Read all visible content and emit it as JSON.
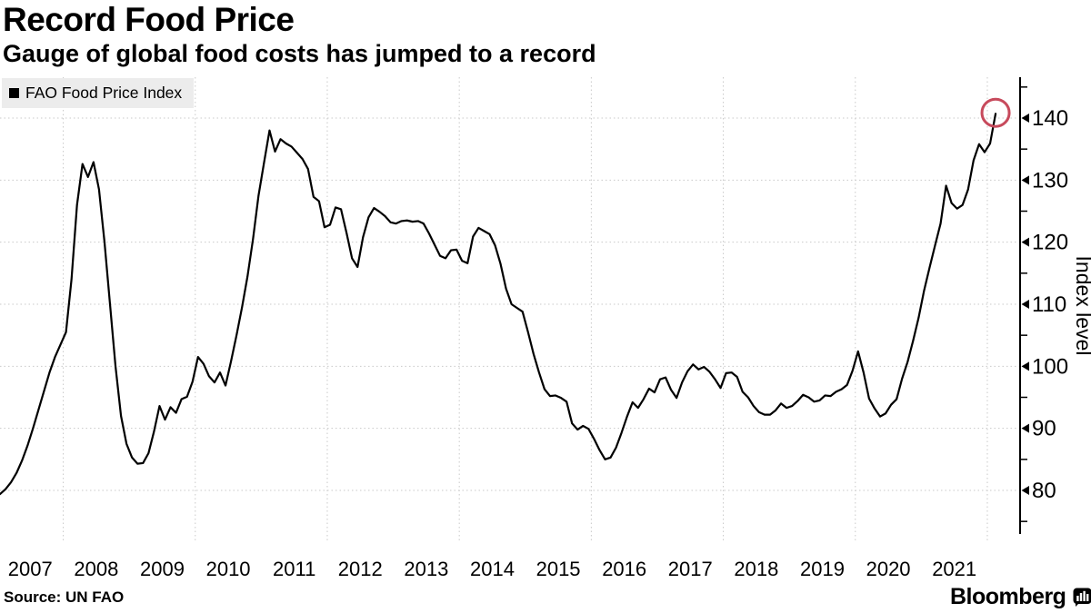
{
  "header": {
    "title": "Record Food Price",
    "subtitle": "Gauge of global food costs has jumped to a record"
  },
  "legend": {
    "label": "FAO Food Price Index",
    "swatch_color": "#000000",
    "background": "#ececec",
    "position": "top-left"
  },
  "chart_data": {
    "type": "line",
    "title": "Record Food Price",
    "xlabel": "",
    "ylabel": "Index level",
    "grid": "dotted",
    "legend_position": "top-left",
    "x_tick_labels": [
      "2007",
      "2008",
      "2009",
      "2010",
      "2011",
      "2012",
      "2013",
      "2014",
      "2015",
      "2016",
      "2017",
      "2018",
      "2019",
      "2020",
      "2021"
    ],
    "y_axis": {
      "label": "Index level",
      "side": "right",
      "major_ticks": [
        80,
        90,
        100,
        110,
        120,
        130,
        140
      ],
      "minor_ticks": [
        75,
        85,
        95,
        105,
        115,
        125,
        135,
        145
      ],
      "range_shown": [
        73,
        147
      ]
    },
    "gridlines": {
      "horizontal_at": [
        80,
        90,
        100,
        110,
        120,
        130,
        140
      ],
      "vertical_at_january_of": [
        2008,
        2010,
        2012,
        2014,
        2016,
        2018,
        2020,
        2022
      ],
      "color": "#c9c9c9"
    },
    "series": [
      {
        "name": "FAO Food Price Index",
        "color": "#000000",
        "frequency": "monthly",
        "start_month": "2007-01",
        "end_month": "2022-02",
        "values": [
          79.4,
          80.2,
          81.3,
          82.8,
          84.8,
          87.2,
          90.0,
          93.0,
          96.0,
          99.0,
          101.5,
          103.5,
          105.5,
          114.0,
          126.0,
          132.6,
          130.5,
          132.9,
          128.5,
          120.0,
          110.0,
          100.0,
          92.0,
          87.5,
          85.3,
          84.3,
          84.4,
          86.0,
          89.5,
          93.6,
          91.4,
          93.4,
          92.5,
          94.7,
          95.1,
          97.5,
          101.5,
          100.4,
          98.4,
          97.4,
          99.0,
          96.9,
          100.8,
          105.0,
          109.5,
          114.5,
          120.5,
          127.5,
          132.8,
          138.0,
          134.6,
          136.6,
          135.9,
          135.4,
          134.4,
          133.4,
          131.8,
          127.3,
          126.6,
          122.4,
          122.8,
          125.6,
          125.3,
          121.5,
          117.4,
          116.0,
          120.8,
          124.0,
          125.5,
          124.9,
          124.2,
          123.2,
          123.0,
          123.4,
          123.5,
          123.3,
          123.4,
          123.0,
          121.4,
          119.6,
          117.8,
          117.4,
          118.7,
          118.8,
          117.0,
          116.6,
          120.9,
          122.3,
          121.8,
          121.3,
          119.5,
          116.5,
          112.5,
          110.0,
          109.4,
          108.8,
          105.5,
          102.0,
          99.0,
          96.3,
          95.2,
          95.3,
          94.9,
          94.3,
          90.8,
          89.8,
          90.4,
          89.9,
          88.3,
          86.5,
          85.0,
          85.3,
          86.9,
          89.3,
          91.9,
          94.2,
          93.3,
          94.7,
          96.4,
          95.8,
          97.9,
          98.2,
          96.2,
          94.9,
          97.4,
          99.2,
          100.3,
          99.5,
          99.9,
          99.1,
          97.9,
          96.5,
          98.9,
          99.0,
          98.3,
          95.9,
          95.0,
          93.6,
          92.6,
          92.2,
          92.2,
          92.9,
          94.0,
          93.3,
          93.6,
          94.4,
          95.4,
          95.0,
          94.3,
          94.5,
          95.3,
          95.2,
          95.9,
          96.3,
          97.0,
          99.3,
          102.4,
          99.0,
          94.8,
          93.2,
          91.9,
          92.4,
          93.8,
          94.7,
          98.0,
          100.7,
          104.1,
          107.8,
          112.2,
          115.9,
          119.5,
          123.0,
          129.1,
          126.3,
          125.4,
          126.0,
          128.5,
          133.2,
          135.8,
          134.5,
          135.9,
          140.7
        ]
      }
    ],
    "annotation": {
      "type": "circle",
      "on": "last-point",
      "month": "2022-02",
      "value": 140.7,
      "color": "#c74a5c"
    }
  },
  "footer": {
    "source": "Source: UN FAO",
    "brand": "Bloomberg",
    "brand_icon": "bar-chart-icon"
  }
}
